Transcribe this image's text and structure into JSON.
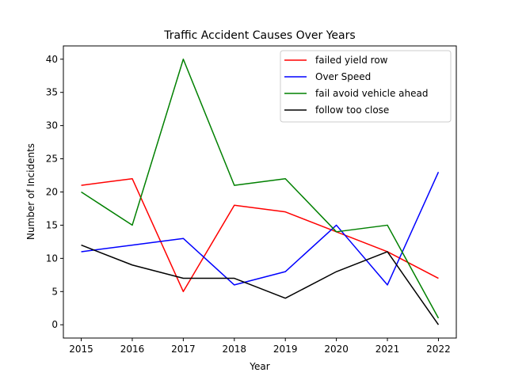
{
  "chart_data": {
    "type": "line",
    "title": "Traffic Accident Causes Over Years",
    "xlabel": "Year",
    "ylabel": "Number of Incidents",
    "x": [
      2015,
      2016,
      2017,
      2018,
      2019,
      2020,
      2021,
      2022
    ],
    "xlim": [
      2014.65,
      2022.35
    ],
    "ylim": [
      -2,
      42
    ],
    "yticks": [
      0,
      5,
      10,
      15,
      20,
      25,
      30,
      35,
      40
    ],
    "grid": false,
    "legend_position": "top-right",
    "series": [
      {
        "name": "failed yield row",
        "color": "#ff0000",
        "values": [
          21,
          22,
          5,
          18,
          17,
          14,
          11,
          7
        ]
      },
      {
        "name": "Over Speed",
        "color": "#0000ff",
        "values": [
          11,
          12,
          13,
          6,
          8,
          15,
          6,
          23
        ]
      },
      {
        "name": "fail avoid vehicle ahead",
        "color": "#008000",
        "values": [
          20,
          15,
          40,
          21,
          22,
          14,
          15,
          1
        ]
      },
      {
        "name": "follow too close",
        "color": "#000000",
        "values": [
          12,
          9,
          7,
          7,
          4,
          8,
          11,
          0
        ]
      }
    ]
  }
}
